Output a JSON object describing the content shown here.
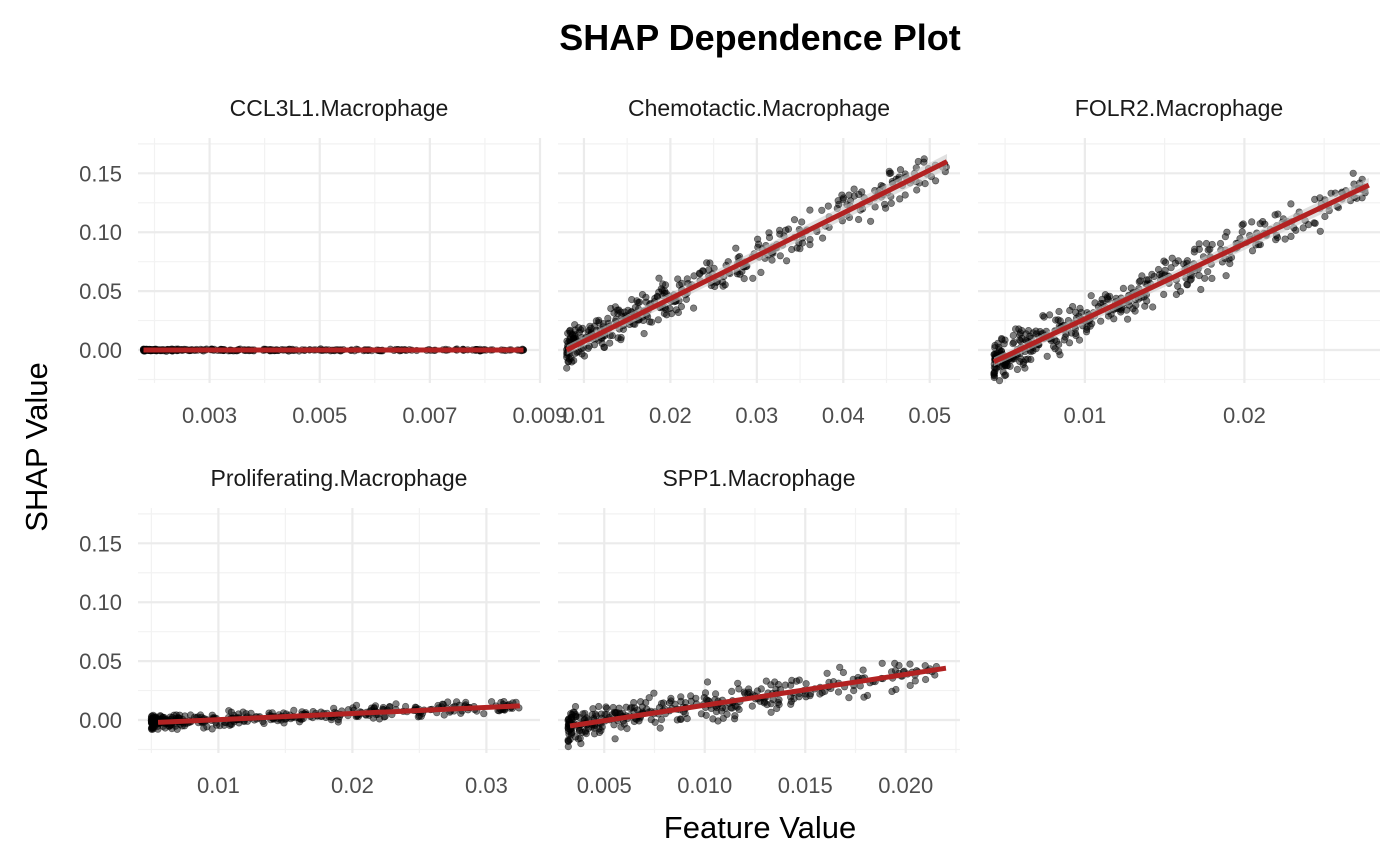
{
  "chart_data": {
    "type": "scatter",
    "title": "SHAP Dependence Plot",
    "xlabel": "Feature Value",
    "ylabel": "SHAP Value",
    "shared_y": {
      "ylim": [
        -0.028,
        0.18
      ],
      "ticks": [
        0.0,
        0.05,
        0.1,
        0.15
      ],
      "tick_labels": [
        "0.00",
        "0.05",
        "0.10",
        "0.15"
      ]
    },
    "grid": true,
    "colors": {
      "points": "#000000",
      "fit_line": "#b22222",
      "ribbon": "#cccccc",
      "grid": "#ebebeb"
    },
    "panels": [
      {
        "name": "CCL3L1.Macrophage",
        "xlim": [
          0.0017,
          0.009
        ],
        "x_ticks": [
          0.003,
          0.005,
          0.007,
          0.009
        ],
        "x_tick_labels": [
          "0.003",
          "0.005",
          "0.007",
          "0.009"
        ],
        "x_range": [
          0.0018,
          0.0087
        ],
        "fit": {
          "x": [
            0.0018,
            0.0087
          ],
          "y": [
            0.0,
            0.0
          ]
        },
        "points": {
          "n": 300,
          "slope": 0.0,
          "intercept": 0.0,
          "noise": 0.0004,
          "skew": 1.8
        }
      },
      {
        "name": "Chemotactic.Macrophage",
        "xlim": [
          0.007,
          0.0535
        ],
        "x_ticks": [
          0.01,
          0.02,
          0.03,
          0.04,
          0.05
        ],
        "x_tick_labels": [
          "0.01",
          "0.02",
          "0.03",
          "0.04",
          "0.05"
        ],
        "x_range": [
          0.008,
          0.052
        ],
        "fit": {
          "x": [
            0.008,
            0.052
          ],
          "y": [
            0.0,
            0.16
          ]
        },
        "points": {
          "n": 380,
          "slope": 3.64,
          "intercept": -0.029,
          "noise": 0.0085,
          "skew": 1.6
        }
      },
      {
        "name": "FOLR2.Macrophage",
        "xlim": [
          0.0033,
          0.0285
        ],
        "x_ticks": [
          0.01,
          0.02
        ],
        "x_tick_labels": [
          "0.01",
          "0.02"
        ],
        "x_range": [
          0.0043,
          0.0278
        ],
        "fit": {
          "x": [
            0.0043,
            0.0278
          ],
          "y": [
            -0.01,
            0.14
          ]
        },
        "points": {
          "n": 420,
          "slope": 6.4,
          "intercept": -0.0375,
          "noise": 0.0085,
          "skew": 1.7
        }
      },
      {
        "name": "Proliferating.Macrophage",
        "xlim": [
          0.004,
          0.034
        ],
        "x_ticks": [
          0.01,
          0.02,
          0.03
        ],
        "x_tick_labels": [
          "0.01",
          "0.02",
          "0.03"
        ],
        "x_range": [
          0.005,
          0.0327
        ],
        "fit": {
          "x": [
            0.0055,
            0.0325
          ],
          "y": [
            -0.002,
            0.012
          ]
        },
        "points": {
          "n": 360,
          "slope": 0.52,
          "intercept": -0.0049,
          "noise": 0.0028,
          "skew": 1.9
        }
      },
      {
        "name": "SPP1.Macrophage",
        "xlim": [
          0.0027,
          0.0227
        ],
        "x_ticks": [
          0.005,
          0.01,
          0.015,
          0.02
        ],
        "x_tick_labels": [
          "0.005",
          "0.010",
          "0.015",
          "0.020"
        ],
        "x_range": [
          0.0032,
          0.022
        ],
        "fit": {
          "x": [
            0.0033,
            0.022
          ],
          "y": [
            -0.005,
            0.044
          ]
        },
        "points": {
          "n": 340,
          "slope": 2.6,
          "intercept": -0.0135,
          "noise": 0.0068,
          "skew": 1.8
        }
      }
    ]
  }
}
